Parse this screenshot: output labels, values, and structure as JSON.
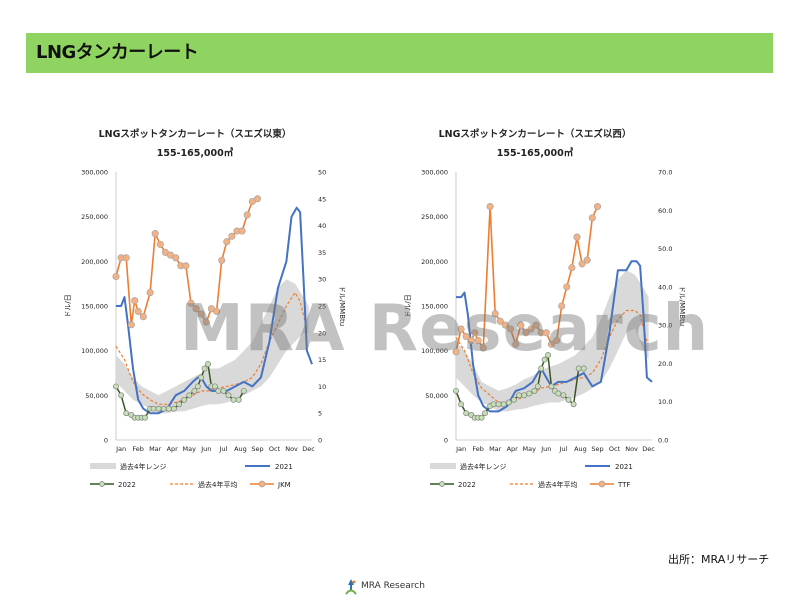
{
  "header": {
    "title": "LNGタンカーレート"
  },
  "watermark": "MRA Research",
  "source": "出所：MRAリサーチ",
  "footer": {
    "logo_text": "MRA Research"
  },
  "colors": {
    "range": "#d9d9d9",
    "y2021": "#4472c4",
    "y2022": "#375623",
    "avg": "#ed7d31",
    "price": "#ed7d31",
    "marker2022": "#c5e0b4",
    "markerPrice": "#f4b183",
    "banner": "#8fd460"
  },
  "chart_data": [
    {
      "type": "line",
      "title": "LNGスポットタンカーレート（スエズ以東）",
      "subtitle": "155-165,000㎥",
      "ylabel": "ドル/日",
      "y2label": "ドル/MMBtu",
      "ylim": [
        0,
        300000
      ],
      "y2lim": [
        0,
        50
      ],
      "yticks": [
        "0",
        "50,000",
        "100,000",
        "150,000",
        "200,000",
        "250,000",
        "300,000"
      ],
      "y2ticks": [
        "0",
        "5",
        "10",
        "15",
        "20",
        "25",
        "30",
        "35",
        "40",
        "45",
        "50"
      ],
      "categories": [
        "Jan",
        "Feb",
        "Mar",
        "Apr",
        "May",
        "Jun",
        "Jul",
        "Aug",
        "Sep",
        "Oct",
        "Nov",
        "Dec"
      ],
      "legend": [
        "過去4年レンジ",
        "2021",
        "2022",
        "過去4年平均",
        "JKM"
      ],
      "range_band": {
        "x": [
          0,
          0.5,
          1,
          1.5,
          2,
          2.5,
          3,
          3.5,
          4,
          4.5,
          5,
          5.5,
          6,
          6.5,
          7,
          7.5,
          8,
          8.5,
          9,
          9.5,
          10,
          10.5,
          11,
          11.3
        ],
        "low": [
          65000,
          55000,
          45000,
          40000,
          35000,
          30000,
          30000,
          32000,
          32000,
          35000,
          38000,
          40000,
          40000,
          42000,
          45000,
          50000,
          55000,
          60000,
          70000,
          85000,
          100000,
          110000,
          120000,
          120000
        ],
        "high": [
          95000,
          85000,
          70000,
          60000,
          55000,
          50000,
          55000,
          60000,
          65000,
          70000,
          75000,
          80000,
          80000,
          85000,
          90000,
          100000,
          110000,
          130000,
          150000,
          170000,
          180000,
          175000,
          160000,
          150000
        ]
      },
      "series": [
        {
          "name": "2021",
          "axis": "left",
          "x": [
            0,
            0.3,
            0.5,
            0.7,
            1,
            1.3,
            1.6,
            2,
            2.5,
            3,
            3.5,
            4,
            4.5,
            4.8,
            5,
            5.3,
            5.6,
            6,
            6.5,
            7,
            7.5,
            8,
            8.5,
            9,
            9.5,
            10,
            10.3,
            10.6,
            10.8,
            11,
            11.2,
            11.5
          ],
          "values": [
            150000,
            150000,
            160000,
            130000,
            80000,
            45000,
            35000,
            30000,
            30000,
            35000,
            50000,
            55000,
            65000,
            70000,
            70000,
            60000,
            55000,
            55000,
            55000,
            60000,
            65000,
            60000,
            70000,
            110000,
            170000,
            200000,
            250000,
            260000,
            255000,
            180000,
            100000,
            85000
          ]
        },
        {
          "name": "過去4年平均",
          "axis": "left",
          "x": [
            0,
            0.5,
            1,
            1.5,
            2,
            2.5,
            3,
            3.5,
            4,
            4.5,
            5,
            5.5,
            6,
            6.5,
            7,
            7.5,
            8,
            8.5,
            9,
            9.5,
            10,
            10.5,
            10.8,
            11.2
          ],
          "values": [
            105000,
            90000,
            65000,
            52000,
            45000,
            40000,
            40000,
            42000,
            45000,
            50000,
            55000,
            55000,
            58000,
            60000,
            62000,
            65000,
            70000,
            85000,
            110000,
            130000,
            150000,
            165000,
            155000,
            125000
          ]
        },
        {
          "name": "2022",
          "axis": "left",
          "x": [
            0,
            0.3,
            0.6,
            0.9,
            1.1,
            1.3,
            1.5,
            1.7,
            2,
            2.2,
            2.5,
            2.8,
            3.1,
            3.4,
            3.7,
            4,
            4.3,
            4.6,
            4.8,
            5,
            5.2,
            5.4,
            5.6,
            5.8,
            6,
            6.3,
            6.6,
            6.9,
            7.2,
            7.5
          ],
          "values": [
            60000,
            50000,
            30000,
            28000,
            25000,
            25000,
            25000,
            25000,
            35000,
            35000,
            35000,
            35000,
            35000,
            35000,
            40000,
            45000,
            50000,
            55000,
            60000,
            70000,
            80000,
            85000,
            60000,
            60000,
            55000,
            55000,
            50000,
            45000,
            45000,
            55000
          ]
        },
        {
          "name": "JKM",
          "axis": "right",
          "x": [
            0,
            0.3,
            0.6,
            0.9,
            1.1,
            1.3,
            1.6,
            2,
            2.3,
            2.6,
            2.9,
            3.2,
            3.5,
            3.8,
            4.1,
            4.4,
            4.7,
            5,
            5.3,
            5.6,
            5.9,
            6.2,
            6.5,
            6.8,
            7.1,
            7.4,
            7.7,
            8,
            8.3
          ],
          "values": [
            30.5,
            34,
            34,
            21.5,
            26,
            24,
            23,
            27.5,
            38.5,
            36.5,
            35,
            34.5,
            34,
            32.5,
            32.5,
            25.5,
            24.5,
            23.5,
            22,
            24.5,
            24,
            33.5,
            37,
            38,
            39,
            39,
            42,
            44.5,
            45
          ]
        }
      ]
    },
    {
      "type": "line",
      "title": "LNGスポットタンカーレート（スエズ以西）",
      "subtitle": "155-165,000㎥",
      "ylabel": "ドル/日",
      "y2label": "ドル/MMBtu",
      "ylim": [
        0,
        300000
      ],
      "y2lim": [
        0,
        70
      ],
      "yticks": [
        "0",
        "50,000",
        "100,000",
        "150,000",
        "200,000",
        "250,000",
        "300,000"
      ],
      "y2ticks": [
        "0.0",
        "10.0",
        "20.0",
        "30.0",
        "40.0",
        "50.0",
        "60.0",
        "70.0"
      ],
      "categories": [
        "Jan",
        "Feb",
        "Mar",
        "Apr",
        "May",
        "Jun",
        "Jul",
        "Aug",
        "Sep",
        "Oct",
        "Nov",
        "Dec"
      ],
      "legend": [
        "過去4年レンジ",
        "2021",
        "2022",
        "過去4年平均",
        "TTF"
      ],
      "range_band": {
        "x": [
          0,
          0.5,
          1,
          1.5,
          2,
          2.5,
          3,
          3.5,
          4,
          4.5,
          5,
          5.5,
          6,
          6.5,
          7,
          7.5,
          8,
          8.5,
          9,
          9.5,
          10,
          10.5,
          11,
          11.3
        ],
        "low": [
          70000,
          60000,
          50000,
          42000,
          38000,
          32000,
          32000,
          34000,
          35000,
          38000,
          40000,
          42000,
          42000,
          45000,
          48000,
          52000,
          58000,
          65000,
          80000,
          100000,
          120000,
          125000,
          100000,
          90000
        ],
        "high": [
          110000,
          100000,
          85000,
          65000,
          60000,
          55000,
          58000,
          62000,
          68000,
          72000,
          78000,
          82000,
          85000,
          90000,
          95000,
          105000,
          115000,
          135000,
          160000,
          180000,
          190000,
          185000,
          170000,
          160000
        ]
      },
      "series": [
        {
          "name": "2021",
          "axis": "left",
          "x": [
            0,
            0.3,
            0.5,
            0.7,
            1,
            1.3,
            1.6,
            2,
            2.5,
            3,
            3.5,
            4,
            4.5,
            4.8,
            5,
            5.3,
            5.6,
            6,
            6.5,
            7,
            7.5,
            8,
            8.5,
            9,
            9.5,
            10,
            10.3,
            10.6,
            10.8,
            11,
            11.2,
            11.5
          ],
          "values": [
            160000,
            160000,
            165000,
            140000,
            85000,
            50000,
            38000,
            32000,
            32000,
            38000,
            55000,
            58000,
            65000,
            75000,
            80000,
            70000,
            60000,
            65000,
            65000,
            70000,
            75000,
            60000,
            65000,
            120000,
            190000,
            190000,
            200000,
            200000,
            195000,
            140000,
            70000,
            65000
          ]
        },
        {
          "name": "過去4年平均",
          "axis": "left",
          "x": [
            0,
            0.5,
            1,
            1.5,
            2,
            2.5,
            3,
            3.5,
            4,
            4.5,
            5,
            5.5,
            6,
            6.5,
            7,
            7.5,
            8,
            8.5,
            9,
            9.5,
            10,
            10.5,
            10.8,
            11.2
          ],
          "values": [
            115000,
            100000,
            75000,
            58000,
            50000,
            42000,
            42000,
            45000,
            48000,
            52000,
            58000,
            60000,
            62000,
            65000,
            68000,
            70000,
            75000,
            90000,
            115000,
            135000,
            145000,
            145000,
            140000,
            110000
          ]
        },
        {
          "name": "2022",
          "axis": "left",
          "x": [
            0,
            0.3,
            0.6,
            0.9,
            1.1,
            1.3,
            1.5,
            1.7,
            2,
            2.2,
            2.5,
            2.8,
            3.1,
            3.4,
            3.7,
            4,
            4.3,
            4.6,
            4.8,
            5,
            5.2,
            5.4,
            5.6,
            5.8,
            6,
            6.3,
            6.6,
            6.9,
            7.2,
            7.5
          ],
          "values": [
            55000,
            40000,
            30000,
            28000,
            25000,
            25000,
            25000,
            30000,
            38000,
            40000,
            40000,
            40000,
            42000,
            45000,
            50000,
            50000,
            52000,
            55000,
            60000,
            80000,
            90000,
            95000,
            60000,
            55000,
            52000,
            50000,
            45000,
            40000,
            80000,
            80000
          ]
        },
        {
          "name": "TTF",
          "axis": "right",
          "x": [
            0,
            0.3,
            0.6,
            0.9,
            1.1,
            1.3,
            1.6,
            2,
            2.3,
            2.6,
            2.9,
            3.2,
            3.5,
            3.8,
            4.1,
            4.4,
            4.7,
            5,
            5.3,
            5.6,
            5.9,
            6.2,
            6.5,
            6.8,
            7.1,
            7.4,
            7.7,
            8,
            8.3
          ],
          "values": [
            23,
            29,
            27,
            26,
            28,
            26,
            24,
            61,
            33,
            31,
            30,
            29,
            25,
            30,
            28,
            29,
            30,
            28,
            28,
            25,
            26,
            35,
            40,
            45,
            53,
            46,
            47,
            58,
            61
          ]
        }
      ]
    }
  ]
}
